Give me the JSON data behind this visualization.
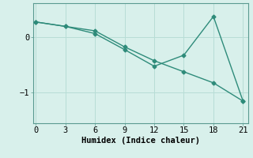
{
  "line1_x": [
    0,
    3,
    6,
    9,
    12,
    15,
    18,
    21
  ],
  "line1_y": [
    0.28,
    0.2,
    0.12,
    -0.17,
    -0.42,
    -0.62,
    -0.82,
    -1.15
  ],
  "line2_x": [
    0,
    3,
    6,
    9,
    12,
    15,
    18,
    21
  ],
  "line2_y": [
    0.28,
    0.2,
    0.07,
    -0.22,
    -0.52,
    -0.32,
    0.38,
    -1.15
  ],
  "line_color": "#2e8b7a",
  "bg_color": "#d8f0eb",
  "grid_color": "#b8ddd6",
  "xlabel": "Humidex (Indice chaleur)",
  "xticks": [
    0,
    3,
    6,
    9,
    12,
    15,
    18,
    21
  ],
  "yticks": [
    0,
    -1
  ],
  "ytick_labels": [
    "0",
    "−1"
  ],
  "xlim": [
    -0.3,
    21.5
  ],
  "ylim": [
    -1.55,
    0.62
  ],
  "marker": "D",
  "markersize": 2.5,
  "linewidth": 1.0,
  "xlabel_fontsize": 7.5,
  "tick_fontsize": 7.5
}
